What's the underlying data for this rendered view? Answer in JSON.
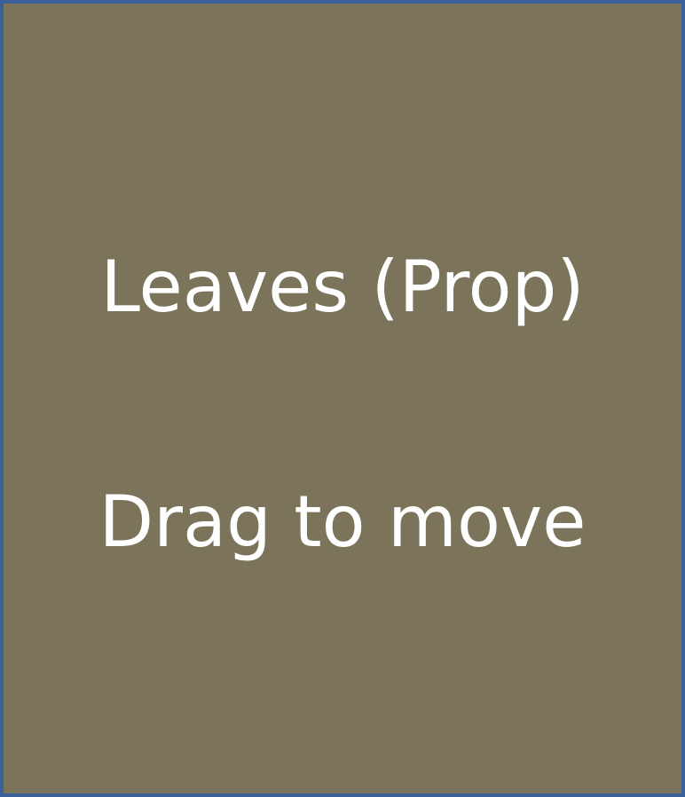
{
  "prop": {
    "title": "Leaves (Prop)",
    "hint": "Drag to move",
    "colors": {
      "background": "#7b735a",
      "border": "#3a5f9a",
      "text": "#ffffff"
    }
  }
}
